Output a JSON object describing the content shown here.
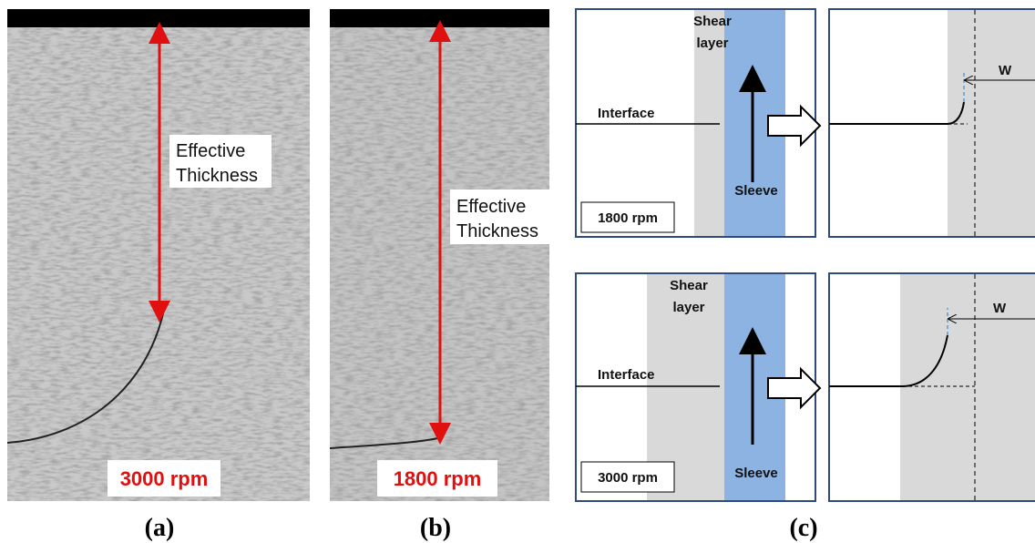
{
  "panels": [
    {
      "label": "(a)",
      "annotation": [
        "Effective",
        "Thickness"
      ],
      "speed": "3000 rpm"
    },
    {
      "label": "(b)",
      "annotation": [
        "Effective",
        "Thickness"
      ],
      "speed": "1800 rpm"
    },
    {
      "label": "(c)",
      "schematics": [
        {
          "shear_layer": [
            "Shear",
            "layer"
          ],
          "interface": "Interface",
          "sleeve": "Sleeve",
          "speed": "1800 rpm",
          "width": "W"
        },
        {
          "shear_layer": [
            "Shear",
            "layer"
          ],
          "interface": "Interface",
          "sleeve": "Sleeve",
          "speed": "3000 rpm",
          "width": "W"
        }
      ]
    }
  ]
}
